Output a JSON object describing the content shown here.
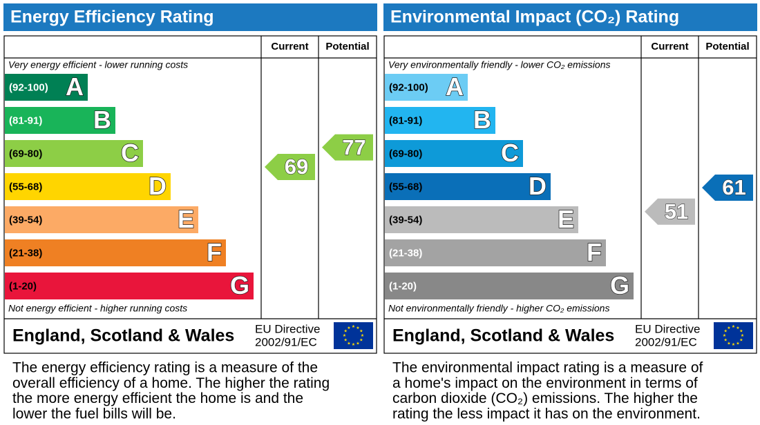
{
  "panels": [
    {
      "title": "Energy Efficiency Rating",
      "columns": [
        "Current",
        "Potential"
      ],
      "top_note": "Very energy efficient - lower running costs",
      "bottom_note": "Not energy efficient - higher running costs",
      "bands": [
        {
          "range": "(92-100)",
          "letter": "A",
          "color": "#008054",
          "label_color": "#ffffff"
        },
        {
          "range": "(81-91)",
          "letter": "B",
          "color": "#19b459",
          "label_color": "#ffffff"
        },
        {
          "range": "(69-80)",
          "letter": "C",
          "color": "#8dce46",
          "label_color": "#000000"
        },
        {
          "range": "(55-68)",
          "letter": "D",
          "color": "#ffd500",
          "label_color": "#000000"
        },
        {
          "range": "(39-54)",
          "letter": "E",
          "color": "#fcaa65",
          "label_color": "#000000"
        },
        {
          "range": "(21-38)",
          "letter": "F",
          "color": "#ef8023",
          "label_color": "#000000"
        },
        {
          "range": "(1-20)",
          "letter": "G",
          "color": "#e9153b",
          "label_color": "#000000"
        }
      ],
      "current": 69,
      "potential": 77,
      "region": "England, Scotland & Wales",
      "directive": [
        "EU Directive",
        "2002/91/EC"
      ],
      "description": [
        "The energy efficiency rating is a measure of the",
        "overall efficiency of a home. The higher the rating",
        "the more energy efficient the home is and the",
        "lower the fuel bills will be."
      ]
    },
    {
      "title": "Environmental Impact (CO₂) Rating",
      "columns": [
        "Current",
        "Potential"
      ],
      "top_note": "Very environmentally friendly - lower CO₂ emissions",
      "bottom_note": "Not environmentally friendly - higher CO₂ emissions",
      "bands": [
        {
          "range": "(92-100)",
          "letter": "A",
          "color": "#6cccf4",
          "label_color": "#000000"
        },
        {
          "range": "(81-91)",
          "letter": "B",
          "color": "#22b5f0",
          "label_color": "#000000"
        },
        {
          "range": "(69-80)",
          "letter": "C",
          "color": "#0e9ad8",
          "label_color": "#000000"
        },
        {
          "range": "(55-68)",
          "letter": "D",
          "color": "#0a6fb8",
          "label_color": "#000000"
        },
        {
          "range": "(39-54)",
          "letter": "E",
          "color": "#bbbbbb",
          "label_color": "#000000"
        },
        {
          "range": "(21-38)",
          "letter": "F",
          "color": "#a3a3a3",
          "label_color": "#ffffff"
        },
        {
          "range": "(1-20)",
          "letter": "G",
          "color": "#888888",
          "label_color": "#ffffff"
        }
      ],
      "current": 51,
      "potential": 61,
      "region": "England, Scotland & Wales",
      "directive": [
        "EU Directive",
        "2002/91/EC"
      ],
      "description": [
        "The environmental impact rating is a measure of",
        "a home's impact on the environment in terms of",
        "carbon dioxide (CO₂) emissions. The higher the",
        "rating the less impact it has on the environment."
      ]
    }
  ]
}
